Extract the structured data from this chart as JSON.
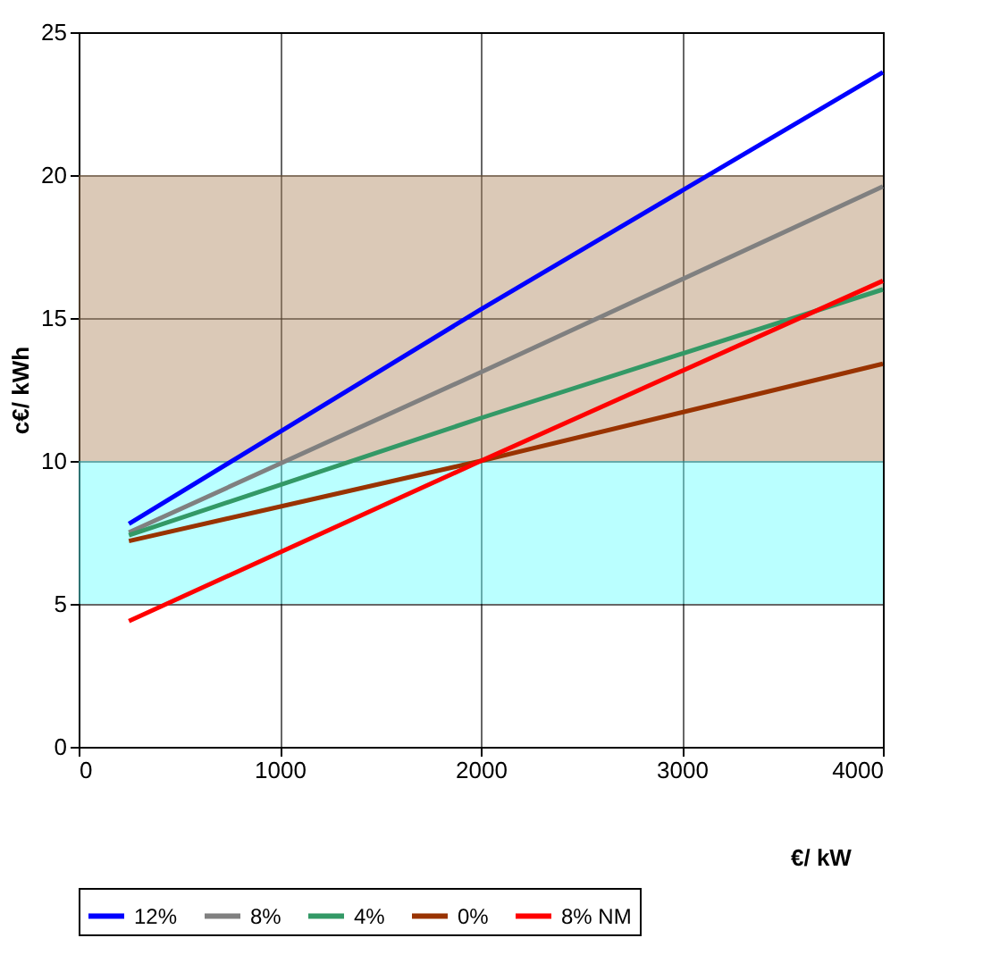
{
  "chart_data": {
    "type": "line",
    "xlabel": "€/ kW",
    "ylabel": "c€/ kWh",
    "xlim": [
      0,
      4000
    ],
    "xticks": [
      0,
      1000,
      2000,
      3000,
      4000
    ],
    "ylim": [
      0,
      25
    ],
    "yticks": [
      0,
      5,
      10,
      15,
      20,
      25
    ],
    "grid": true,
    "legend": "bottom",
    "marker": "none",
    "line_style": "solid",
    "bands": [
      {
        "axis": "y",
        "from": 5,
        "to": 10,
        "color": "#66ffff"
      },
      {
        "axis": "y",
        "from": 10,
        "to": 20,
        "color": "#b08860"
      }
    ],
    "series": [
      {
        "name": "12%",
        "color": "#0000ff",
        "x": [
          250,
          2000,
          4000
        ],
        "values": [
          7.8,
          15.3,
          23.6
        ]
      },
      {
        "name": "8%",
        "color": "#808080",
        "x": [
          250,
          2000,
          4000
        ],
        "values": [
          7.5,
          13.1,
          19.6
        ]
      },
      {
        "name": "4%",
        "color": "#339966",
        "x": [
          250,
          2000,
          4000
        ],
        "values": [
          7.4,
          11.5,
          16.0
        ]
      },
      {
        "name": "0%",
        "color": "#993300",
        "x": [
          250,
          2000,
          4000
        ],
        "values": [
          7.2,
          10.0,
          13.4
        ]
      },
      {
        "name": "8% NM",
        "color": "#ff0000",
        "x": [
          250,
          2000,
          4000
        ],
        "values": [
          4.4,
          10.0,
          16.3
        ]
      }
    ]
  }
}
